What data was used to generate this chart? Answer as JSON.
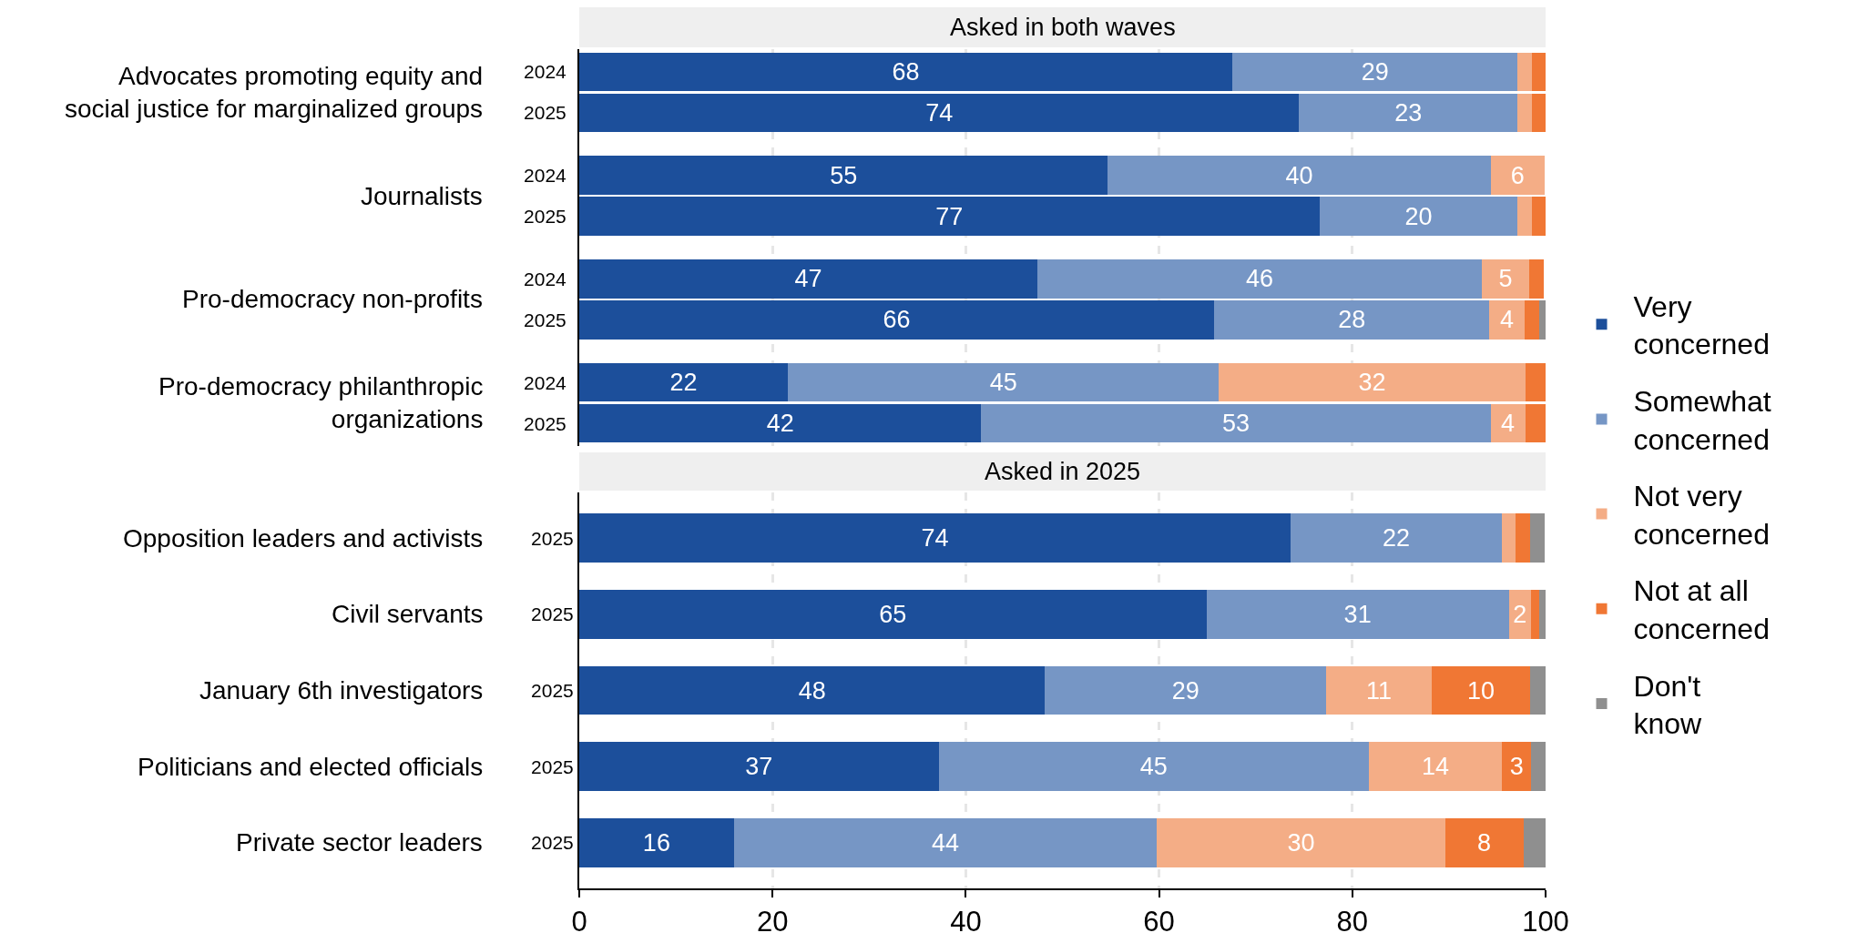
{
  "chart_data": [
    {
      "type": "bar",
      "title": "Asked in both waves",
      "orientation": "horizontal",
      "stacked": true,
      "categories": [
        "2024",
        "2025",
        "2024",
        "2025",
        "2024",
        "2025",
        "2024",
        "2025"
      ],
      "annotations": [
        "Advocates promoting equity and social justice for marginalized groups",
        "Journalists",
        "Pro-democracy non-profits",
        "Pro-democracy philanthropic organizations"
      ],
      "series": [
        {
          "name": "Very concerned",
          "color": "#1c4f9b",
          "values": [
            67.6,
            74.5,
            54.7,
            76.6,
            47.4,
            65.7,
            21.6,
            41.6
          ],
          "value_labels": [
            "68",
            "74",
            "55",
            "77",
            "47",
            "66",
            "22",
            "42"
          ]
        },
        {
          "name": "Somewhat concerned",
          "color": "#7696c5",
          "values": [
            29.5,
            22.6,
            39.6,
            20.5,
            46.0,
            28.5,
            44.6,
            52.7
          ],
          "value_labels": [
            "29",
            "23",
            "40",
            "20",
            "46",
            "28",
            "45",
            "53"
          ]
        },
        {
          "name": "Not very concerned",
          "color": "#f4ad86",
          "values": [
            1.5,
            1.5,
            5.6,
            1.5,
            4.9,
            3.6,
            31.7,
            3.6
          ],
          "value_labels": [
            null,
            null,
            "6",
            null,
            "5",
            "4",
            "32",
            "4"
          ]
        },
        {
          "name": "Not at all concerned",
          "color": "#f07734",
          "values": [
            1.4,
            1.4,
            0,
            1.4,
            1.5,
            1.5,
            2.1,
            2.1
          ],
          "value_labels": [
            null,
            null,
            null,
            null,
            null,
            null,
            null,
            null
          ]
        },
        {
          "name": "Don't know",
          "color": "#8f8f8f",
          "values": [
            0,
            0,
            0,
            0,
            0,
            0.7,
            0,
            0
          ],
          "value_labels": [
            null,
            null,
            null,
            null,
            null,
            null,
            null,
            null
          ]
        }
      ],
      "xlim": [
        0,
        100
      ],
      "xticks": [
        0,
        20,
        40,
        60,
        80,
        100
      ],
      "grid": "x",
      "legend": "right",
      "tick_labels": "y"
    },
    {
      "type": "bar",
      "title": "Asked in 2025",
      "orientation": "horizontal",
      "stacked": true,
      "categories": [
        "2025",
        "2025",
        "2025",
        "2025",
        "2025"
      ],
      "annotations": [
        "Opposition leaders and activists",
        "Civil servants",
        "January 6th investigators",
        "Politicians and elected officials",
        "Private sector leaders"
      ],
      "series": [
        {
          "color": "#1c4f9b",
          "values": [
            73.6,
            64.9,
            48.2,
            37.2,
            16.0
          ],
          "value_labels": [
            "74",
            "65",
            "48",
            "37",
            "16"
          ]
        },
        {
          "color": "#7696c5",
          "values": [
            21.9,
            31.3,
            29.1,
            44.5,
            43.8
          ],
          "value_labels": [
            "22",
            "31",
            "29",
            "45",
            "44"
          ]
        },
        {
          "color": "#f4ad86",
          "values": [
            1.4,
            2.3,
            10.9,
            13.8,
            29.8
          ],
          "value_labels": [
            null,
            "2",
            "11",
            "14",
            "30"
          ]
        },
        {
          "color": "#f07734",
          "values": [
            1.5,
            0.8,
            10.2,
            3.0,
            8.1
          ],
          "value_labels": [
            null,
            null,
            "10",
            "3",
            "8"
          ]
        },
        {
          "color": "#8f8f8f",
          "values": [
            1.5,
            0.7,
            1.6,
            1.5,
            2.3
          ],
          "value_labels": [
            null,
            null,
            null,
            null,
            null
          ]
        }
      ],
      "xlim": [
        0,
        100
      ],
      "xticks": [
        0,
        20,
        40,
        60,
        80,
        100
      ],
      "grid": "x"
    }
  ]
}
